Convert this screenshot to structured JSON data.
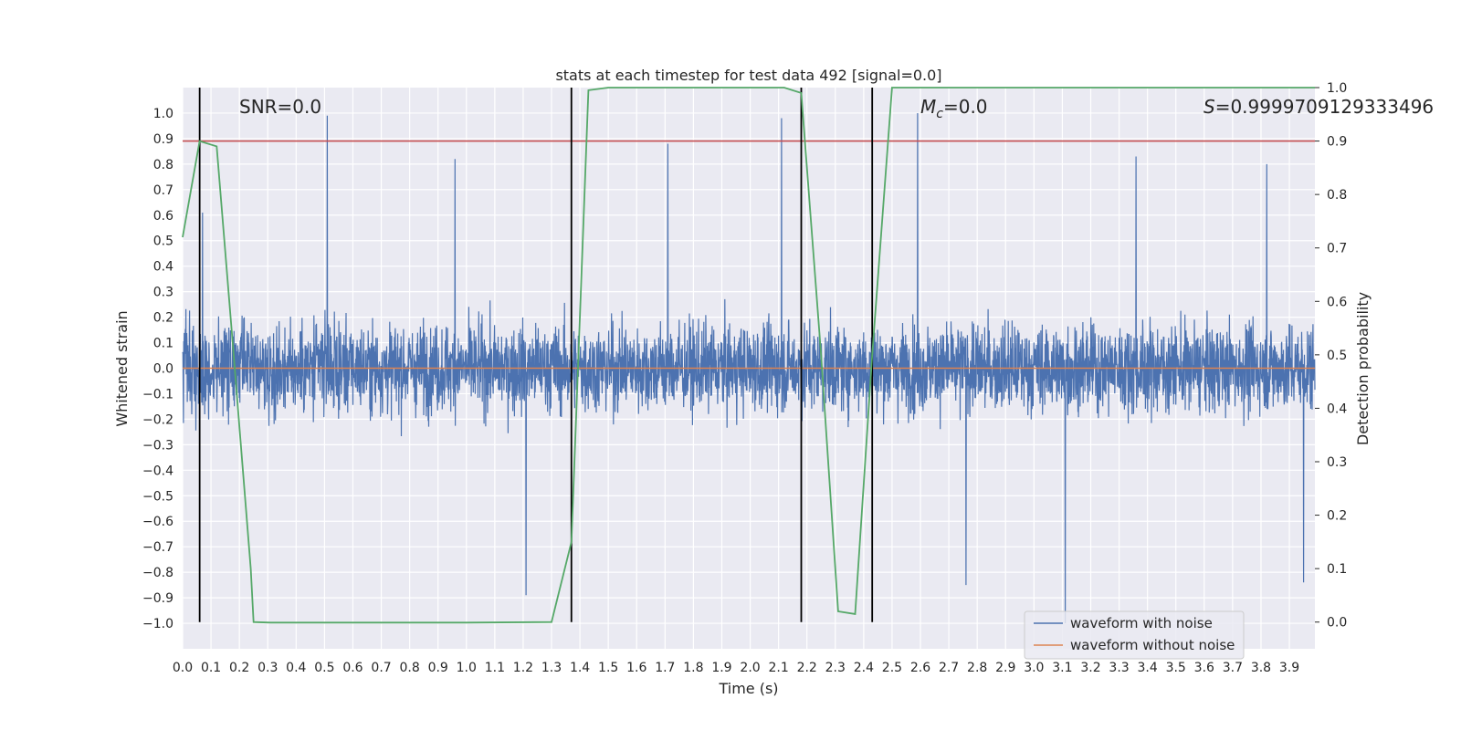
{
  "chart_data": {
    "type": "line",
    "title": "stats at each timestep for test data 492 [signal=0.0]",
    "xlabel": "Time (s)",
    "ylabel": "Whitened strain",
    "y2label": "Detection probability",
    "xlim": [
      0.0,
      3.99
    ],
    "ylim": [
      -1.1,
      1.1
    ],
    "y2lim": [
      -0.05,
      1.0
    ],
    "x_ticks": [
      "0.0",
      "0.1",
      "0.2",
      "0.3",
      "0.4",
      "0.5",
      "0.6",
      "0.7",
      "0.8",
      "0.9",
      "1.0",
      "1.1",
      "1.2",
      "1.3",
      "1.4",
      "1.5",
      "1.6",
      "1.7",
      "1.8",
      "1.9",
      "2.0",
      "2.1",
      "2.2",
      "2.3",
      "2.4",
      "2.5",
      "2.6",
      "2.7",
      "2.8",
      "2.9",
      "3.0",
      "3.1",
      "3.2",
      "3.3",
      "3.4",
      "3.5",
      "3.6",
      "3.7",
      "3.8",
      "3.9"
    ],
    "y_ticks": [
      "1.0",
      "0.9",
      "0.8",
      "0.7",
      "0.6",
      "0.5",
      "0.4",
      "0.3",
      "0.2",
      "0.1",
      "0.0",
      "−0.1",
      "−0.2",
      "−0.3",
      "−0.4",
      "−0.5",
      "−0.6",
      "−0.7",
      "−0.8",
      "−0.9",
      "−1.0"
    ],
    "y2_ticks": [
      "1.0",
      "0.9",
      "0.8",
      "0.7",
      "0.6",
      "0.5",
      "0.4",
      "0.3",
      "0.2",
      "0.1",
      "0.0"
    ],
    "grid": true,
    "legend_position": "bottom-right",
    "annotations": {
      "snr": "SNR=0.0",
      "mc_symbol": "M",
      "mc_sub": "c",
      "mc_value": "=0.0",
      "s_symbol": "S",
      "s_value": "=0.9999709129333496"
    },
    "threshold": 0.9,
    "vertical_lines": [
      0.06,
      1.37,
      2.18,
      2.43
    ],
    "series": [
      {
        "name": "waveform with noise",
        "color": "#4c72b0",
        "kind": "noise",
        "spikes": [
          [
            0.51,
            0.99
          ],
          [
            0.96,
            0.82
          ],
          [
            1.21,
            -0.89
          ],
          [
            1.71,
            0.88
          ],
          [
            2.11,
            0.98
          ],
          [
            2.59,
            1.0
          ],
          [
            3.36,
            0.83
          ],
          [
            3.11,
            -1.0
          ],
          [
            3.82,
            0.8
          ],
          [
            3.95,
            -0.84
          ],
          [
            2.76,
            -0.85
          ],
          [
            0.07,
            0.61
          ]
        ]
      },
      {
        "name": "waveform without noise",
        "color": "#dd8452",
        "kind": "flat",
        "values": [
          0.0,
          0.0
        ]
      },
      {
        "name": "",
        "color": "#55a868",
        "kind": "probability",
        "x": [
          0.0,
          0.06,
          0.12,
          0.18,
          0.24,
          0.25,
          0.31,
          0.5,
          1.0,
          1.3,
          1.37,
          1.43,
          1.5,
          2.12,
          2.18,
          2.25,
          2.31,
          2.37,
          2.43,
          2.5,
          3.99
        ],
        "y": [
          0.72,
          0.9,
          0.89,
          0.5,
          0.1,
          0.0,
          -0.001,
          -0.001,
          -0.001,
          0.0,
          0.15,
          0.995,
          1.0,
          1.0,
          0.99,
          0.5,
          0.02,
          0.015,
          0.5,
          1.0,
          1.0
        ]
      }
    ],
    "threshold_color": "#c44e52"
  }
}
